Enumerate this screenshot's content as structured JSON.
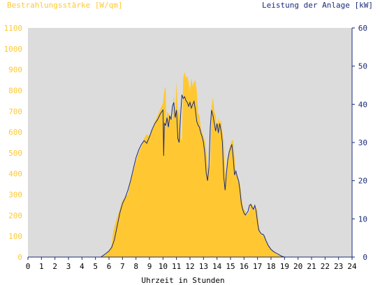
{
  "colors": {
    "plot_bg": "#dcdcdc",
    "irradiance_fill": "#ffc832",
    "power_line": "#1a2a7a",
    "left_axis_text": "#ffc832",
    "right_axis_text": "#1a2a7a",
    "axis": "#1a2a7a",
    "x_text": "#000000"
  },
  "chart_data": {
    "type": "area",
    "left_axis_title": "Bestrahlungsstärke [W/qm]",
    "right_axis_title": "Leistung der Anlage [kW]",
    "xlabel": "Uhrzeit in Stunden",
    "xlim": [
      0,
      24
    ],
    "ylim_left": [
      0,
      1100
    ],
    "ylim_right": [
      0,
      60
    ],
    "x_ticks": [
      "0",
      "1",
      "2",
      "3",
      "4",
      "5",
      "6",
      "7",
      "8",
      "9",
      "10",
      "11",
      "12",
      "13",
      "14",
      "15",
      "16",
      "17",
      "18",
      "19",
      "20",
      "21",
      "22",
      "23",
      "24"
    ],
    "left_ticks": [
      "0",
      "100",
      "200",
      "300",
      "400",
      "500",
      "600",
      "700",
      "800",
      "900",
      "1000",
      "1100"
    ],
    "right_ticks": [
      "0",
      "10",
      "20",
      "30",
      "40",
      "50",
      "60"
    ],
    "series": [
      {
        "name": "Bestrahlungsstärke [W/qm]",
        "axis": "left",
        "style": "area",
        "points": [
          [
            0,
            0
          ],
          [
            5.4,
            0
          ],
          [
            5.6,
            5
          ],
          [
            5.8,
            15
          ],
          [
            6.0,
            30
          ],
          [
            6.2,
            60
          ],
          [
            6.3,
            120
          ],
          [
            6.5,
            170
          ],
          [
            6.8,
            230
          ],
          [
            7.0,
            270
          ],
          [
            7.2,
            290
          ],
          [
            7.4,
            300
          ],
          [
            7.6,
            360
          ],
          [
            7.8,
            410
          ],
          [
            8.0,
            460
          ],
          [
            8.2,
            500
          ],
          [
            8.4,
            530
          ],
          [
            8.6,
            570
          ],
          [
            8.8,
            590
          ],
          [
            9.0,
            580
          ],
          [
            9.2,
            610
          ],
          [
            9.4,
            650
          ],
          [
            9.6,
            680
          ],
          [
            9.8,
            710
          ],
          [
            10.0,
            740
          ],
          [
            10.1,
            800
          ],
          [
            10.2,
            820
          ],
          [
            10.25,
            600
          ],
          [
            10.3,
            700
          ],
          [
            10.5,
            680
          ],
          [
            10.7,
            660
          ],
          [
            10.8,
            780
          ],
          [
            10.9,
            690
          ],
          [
            11.0,
            840
          ],
          [
            11.1,
            680
          ],
          [
            11.2,
            720
          ],
          [
            11.3,
            570
          ],
          [
            11.4,
            560
          ],
          [
            11.5,
            860
          ],
          [
            11.6,
            890
          ],
          [
            11.7,
            860
          ],
          [
            11.8,
            870
          ],
          [
            11.9,
            840
          ],
          [
            12.0,
            800
          ],
          [
            12.1,
            860
          ],
          [
            12.2,
            820
          ],
          [
            12.3,
            840
          ],
          [
            12.4,
            850
          ],
          [
            12.5,
            800
          ],
          [
            12.6,
            690
          ],
          [
            12.7,
            680
          ],
          [
            12.8,
            620
          ],
          [
            12.9,
            600
          ],
          [
            13.0,
            580
          ],
          [
            13.1,
            560
          ],
          [
            13.2,
            520
          ],
          [
            13.3,
            440
          ],
          [
            13.4,
            410
          ],
          [
            13.5,
            450
          ],
          [
            13.6,
            720
          ],
          [
            13.7,
            770
          ],
          [
            13.8,
            700
          ],
          [
            13.9,
            680
          ],
          [
            14.0,
            600
          ],
          [
            14.1,
            670
          ],
          [
            14.2,
            640
          ],
          [
            14.3,
            660
          ],
          [
            14.4,
            600
          ],
          [
            14.5,
            560
          ],
          [
            14.6,
            420
          ],
          [
            14.7,
            380
          ],
          [
            14.8,
            460
          ],
          [
            14.9,
            520
          ],
          [
            15.0,
            540
          ],
          [
            15.1,
            560
          ],
          [
            15.2,
            560
          ],
          [
            15.3,
            480
          ],
          [
            15.4,
            400
          ],
          [
            15.5,
            390
          ],
          [
            15.6,
            370
          ],
          [
            15.7,
            350
          ],
          [
            15.8,
            300
          ],
          [
            15.9,
            250
          ],
          [
            16.0,
            230
          ],
          [
            16.1,
            220
          ],
          [
            16.2,
            200
          ],
          [
            16.3,
            210
          ],
          [
            16.4,
            220
          ],
          [
            16.5,
            260
          ],
          [
            16.6,
            250
          ],
          [
            16.7,
            240
          ],
          [
            16.8,
            220
          ],
          [
            16.9,
            240
          ],
          [
            17.0,
            220
          ],
          [
            17.1,
            150
          ],
          [
            17.2,
            120
          ],
          [
            17.3,
            100
          ],
          [
            17.4,
            110
          ],
          [
            17.5,
            100
          ],
          [
            17.6,
            80
          ],
          [
            17.8,
            60
          ],
          [
            18.0,
            40
          ],
          [
            18.2,
            25
          ],
          [
            18.4,
            15
          ],
          [
            18.6,
            8
          ],
          [
            18.8,
            3
          ],
          [
            19.0,
            0
          ],
          [
            24,
            0
          ]
        ]
      },
      {
        "name": "Leistung der Anlage [kW]",
        "axis": "right",
        "style": "line",
        "points": [
          [
            0,
            0
          ],
          [
            5.4,
            0
          ],
          [
            5.6,
            0.5
          ],
          [
            5.8,
            1.0
          ],
          [
            6.0,
            1.6
          ],
          [
            6.2,
            2.5
          ],
          [
            6.4,
            4.5
          ],
          [
            6.6,
            8.0
          ],
          [
            6.8,
            11.5
          ],
          [
            7.0,
            14.0
          ],
          [
            7.2,
            15.5
          ],
          [
            7.4,
            17.5
          ],
          [
            7.6,
            20.0
          ],
          [
            7.8,
            23.0
          ],
          [
            8.0,
            26.0
          ],
          [
            8.2,
            28.0
          ],
          [
            8.4,
            29.5
          ],
          [
            8.6,
            30.5
          ],
          [
            8.8,
            29.8
          ],
          [
            9.0,
            31.5
          ],
          [
            9.2,
            33.5
          ],
          [
            9.4,
            35.0
          ],
          [
            9.6,
            36.0
          ],
          [
            9.8,
            37.5
          ],
          [
            10.0,
            38.5
          ],
          [
            10.05,
            26.5
          ],
          [
            10.1,
            35.0
          ],
          [
            10.2,
            34.5
          ],
          [
            10.3,
            36.5
          ],
          [
            10.4,
            34.0
          ],
          [
            10.5,
            37.0
          ],
          [
            10.6,
            36.0
          ],
          [
            10.7,
            39.5
          ],
          [
            10.8,
            40.5
          ],
          [
            10.9,
            36.5
          ],
          [
            11.0,
            38.5
          ],
          [
            11.1,
            31.0
          ],
          [
            11.2,
            30.0
          ],
          [
            11.3,
            37.0
          ],
          [
            11.4,
            42.5
          ],
          [
            11.5,
            41.5
          ],
          [
            11.6,
            42.0
          ],
          [
            11.7,
            41.0
          ],
          [
            11.8,
            40.5
          ],
          [
            11.9,
            39.5
          ],
          [
            12.0,
            40.5
          ],
          [
            12.1,
            39.0
          ],
          [
            12.2,
            40.0
          ],
          [
            12.3,
            40.8
          ],
          [
            12.4,
            38.5
          ],
          [
            12.5,
            35.5
          ],
          [
            12.6,
            34.5
          ],
          [
            12.7,
            34.0
          ],
          [
            12.8,
            32.5
          ],
          [
            12.9,
            31.5
          ],
          [
            13.0,
            30.0
          ],
          [
            13.1,
            27.0
          ],
          [
            13.2,
            22.0
          ],
          [
            13.3,
            20.0
          ],
          [
            13.4,
            23.5
          ],
          [
            13.5,
            34.0
          ],
          [
            13.6,
            38.5
          ],
          [
            13.7,
            37.0
          ],
          [
            13.8,
            35.0
          ],
          [
            13.9,
            33.0
          ],
          [
            14.0,
            35.0
          ],
          [
            14.1,
            32.5
          ],
          [
            14.2,
            35.0
          ],
          [
            14.3,
            33.0
          ],
          [
            14.4,
            30.0
          ],
          [
            14.5,
            21.0
          ],
          [
            14.6,
            17.5
          ],
          [
            14.7,
            22.0
          ],
          [
            14.8,
            25.5
          ],
          [
            14.9,
            27.5
          ],
          [
            15.0,
            28.5
          ],
          [
            15.1,
            29.5
          ],
          [
            15.2,
            26.0
          ],
          [
            15.3,
            21.5
          ],
          [
            15.4,
            22.5
          ],
          [
            15.5,
            21.0
          ],
          [
            15.6,
            20.0
          ],
          [
            15.7,
            17.5
          ],
          [
            15.8,
            14.0
          ],
          [
            15.9,
            12.5
          ],
          [
            16.0,
            11.5
          ],
          [
            16.1,
            11.0
          ],
          [
            16.2,
            11.5
          ],
          [
            16.3,
            12.0
          ],
          [
            16.4,
            13.5
          ],
          [
            16.5,
            13.8
          ],
          [
            16.6,
            13.0
          ],
          [
            16.7,
            12.5
          ],
          [
            16.8,
            13.5
          ],
          [
            16.9,
            12.0
          ],
          [
            17.0,
            9.0
          ],
          [
            17.1,
            7.0
          ],
          [
            17.2,
            6.5
          ],
          [
            17.3,
            6.0
          ],
          [
            17.4,
            6.0
          ],
          [
            17.5,
            5.5
          ],
          [
            17.6,
            4.5
          ],
          [
            17.8,
            3.0
          ],
          [
            18.0,
            2.0
          ],
          [
            18.2,
            1.4
          ],
          [
            18.4,
            1.0
          ],
          [
            18.6,
            0.6
          ],
          [
            18.8,
            0.2
          ],
          [
            19.0,
            0
          ],
          [
            24,
            0
          ]
        ]
      }
    ],
    "grid": false
  }
}
